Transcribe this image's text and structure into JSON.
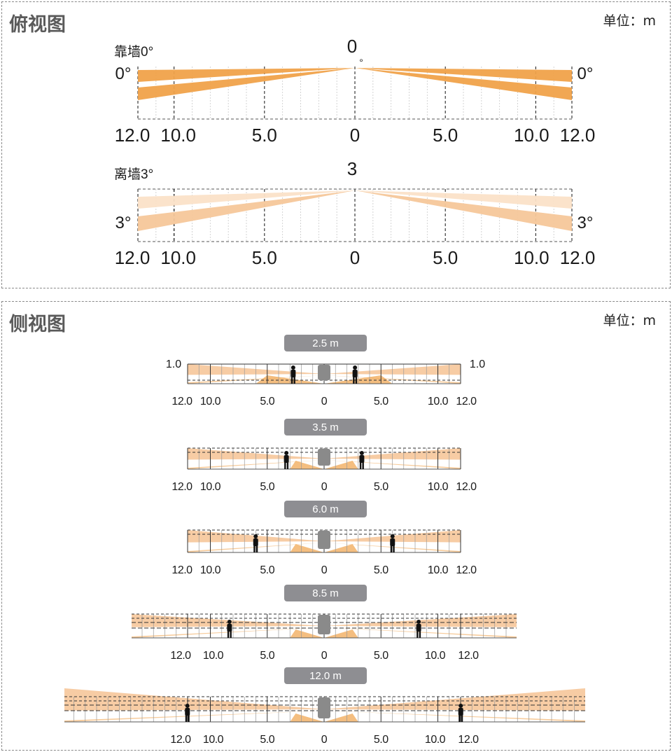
{
  "top_view": {
    "title": "俯视图",
    "unit": "单位：m",
    "rows": [
      {
        "label": "靠墙0°",
        "center_angle": "0",
        "center_degree": "°",
        "left_angle": "0°",
        "right_angle": "0°",
        "ticks": [
          "12.0",
          "10.0",
          "5.0",
          "0",
          "5.0",
          "10.0",
          "12.0"
        ],
        "tilt": 0
      },
      {
        "label": "离墙3°",
        "center_angle": "3",
        "center_degree": "°",
        "left_angle": "3°",
        "right_angle": "3°",
        "ticks": [
          "12.0",
          "10.0",
          "5.0",
          "0",
          "5.0",
          "10.0",
          "12.0"
        ],
        "tilt": 3
      }
    ]
  },
  "side_view": {
    "title": "侧视图",
    "unit": "单位：m",
    "rows": [
      {
        "height_label": "2.5 m",
        "height": 2.5,
        "left_value": "1.0",
        "right_value": "1.0",
        "ticks": [
          "12.0",
          "10.0",
          "5.0",
          "0",
          "5.0",
          "10.0",
          "12.0"
        ]
      },
      {
        "height_label": "3.5 m",
        "height": 3.5,
        "left_value": "",
        "right_value": "",
        "ticks": [
          "12.0",
          "10.0",
          "5.0",
          "0",
          "5.0",
          "10.0",
          "12.0"
        ]
      },
      {
        "height_label": "6.0 m",
        "height": 6.0,
        "left_value": "",
        "right_value": "",
        "ticks": [
          "12.0",
          "10.0",
          "5.0",
          "0",
          "5.0",
          "10.0",
          "12.0"
        ]
      },
      {
        "height_label": "8.5 m",
        "height": 8.5,
        "left_value": "",
        "right_value": "",
        "ticks": [
          "12.0",
          "10.0",
          "5.0",
          "0",
          "5.0",
          "10.0",
          "12.0"
        ]
      },
      {
        "height_label": "12.0 m",
        "height": 12.0,
        "left_value": "",
        "right_value": "",
        "ticks": [
          "12.0",
          "10.0",
          "5.0",
          "0",
          "5.0",
          "10.0",
          "12.0"
        ]
      }
    ]
  },
  "colors": {
    "beam_strong": "#f0a24a",
    "beam_light": "#f6c79a",
    "beam_pale": "#fbe2c8",
    "badge": "#8e8e92",
    "sensor": "#8a8a8a"
  }
}
